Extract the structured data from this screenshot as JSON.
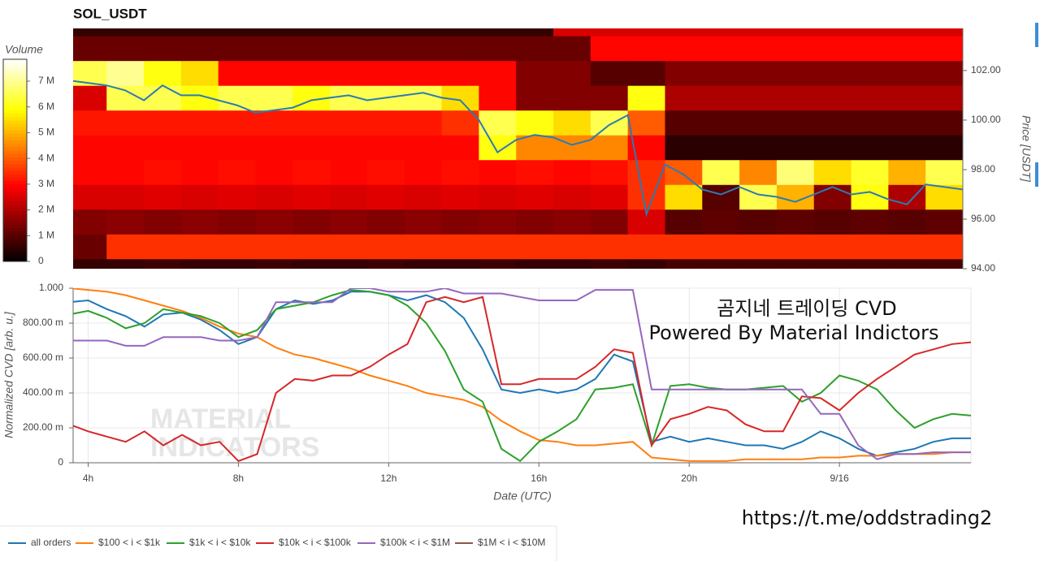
{
  "chart_data": [
    {
      "type": "heatmap",
      "title": "SOL_USDT",
      "colorbar_label": "Volume",
      "colormap": "hot",
      "ylabel": "Price [USDT]",
      "xlim": [
        3.6,
        27.5
      ],
      "ylim": [
        94,
        103.7
      ],
      "yticks": [
        {
          "value": 94,
          "label": "94.00"
        },
        {
          "value": 96,
          "label": "96.00"
        },
        {
          "value": 98,
          "label": "98.00"
        },
        {
          "value": 100,
          "label": "100.00"
        },
        {
          "value": 102,
          "label": "102.00"
        }
      ],
      "zlim": [
        0,
        7.85
      ],
      "zticks": [
        0,
        {
          "value": 1,
          "label": "1 M"
        },
        {
          "value": 2,
          "label": "2 M"
        },
        {
          "value": 3,
          "label": "3 M"
        },
        {
          "value": 4,
          "label": "4 M"
        },
        {
          "value": 5,
          "label": "5 M"
        },
        {
          "value": 6,
          "label": "6 M"
        },
        {
          "value": 7,
          "label": "7 M"
        }
      ],
      "x_bins": [
        3.5,
        4.5,
        5.5,
        6.5,
        7.5,
        8.5,
        9.5,
        10.5,
        11.5,
        12.5,
        13.5,
        14.5,
        15.5,
        16.5,
        17.5,
        18.5,
        19.5,
        20.5,
        21.5,
        22.5,
        23.5,
        24.5,
        25.5,
        26.5,
        27.5
      ],
      "y_bins": [
        93.4,
        94.4,
        95.4,
        96.4,
        97.4,
        98.4,
        99.4,
        100.4,
        101.4,
        102.4,
        103.4,
        104.4
      ],
      "z": [
        [
          0.6,
          0.6,
          0.7,
          0.6,
          0.6,
          0.7,
          0.6,
          0.6,
          0.7,
          0.6,
          0.6,
          0.7,
          0.6,
          0.6,
          0.7,
          0.6,
          0.8,
          0.8,
          0.8,
          0.8,
          0.8,
          0.8,
          0.8,
          0.8
        ],
        [
          1.2,
          3.5,
          3.5,
          3.5,
          3.5,
          3.5,
          3.5,
          3.5,
          3.5,
          3.5,
          3.5,
          3.5,
          3.5,
          3.5,
          3.5,
          3.5,
          3.5,
          3.5,
          3.5,
          3.5,
          3.5,
          3.5,
          3.5,
          3.5
        ],
        [
          1.5,
          1.6,
          1.5,
          1.6,
          1.5,
          1.6,
          1.5,
          1.6,
          1.5,
          1.6,
          1.5,
          1.6,
          1.5,
          1.6,
          1.5,
          2.5,
          1.0,
          1.1,
          1.0,
          1.1,
          1.0,
          1.1,
          1.0,
          1.1
        ],
        [
          2.5,
          2.5,
          2.6,
          2.5,
          2.6,
          2.5,
          2.6,
          2.5,
          2.6,
          2.5,
          2.6,
          2.5,
          2.6,
          2.5,
          2.6,
          3.5,
          5.5,
          1.0,
          6.5,
          5.0,
          1.5,
          6.0,
          2.0,
          5.5
        ],
        [
          3.0,
          3.0,
          3.1,
          3.0,
          3.1,
          3.0,
          3.1,
          3.0,
          3.1,
          3.0,
          3.1,
          3.0,
          3.1,
          3.0,
          3.1,
          3.5,
          4.0,
          6.5,
          4.5,
          6.8,
          5.5,
          6.2,
          5.0,
          6.5
        ],
        [
          3.0,
          3.0,
          3.0,
          3.0,
          3.0,
          3.0,
          3.0,
          3.0,
          3.0,
          3.0,
          3.0,
          6.0,
          4.5,
          4.5,
          4.5,
          3.0,
          0.5,
          0.5,
          0.5,
          0.5,
          0.5,
          0.5,
          0.5,
          0.5
        ],
        [
          3.2,
          3.2,
          3.2,
          3.2,
          3.2,
          3.2,
          3.2,
          3.2,
          3.2,
          3.2,
          3.5,
          6.5,
          6.0,
          5.5,
          6.5,
          4.0,
          1.0,
          1.0,
          1.0,
          1.0,
          1.0,
          1.0,
          1.0,
          1.0
        ],
        [
          2.5,
          6.5,
          6.5,
          6.0,
          6.5,
          6.5,
          6.0,
          6.5,
          6.5,
          6.5,
          5.5,
          3.0,
          1.5,
          1.5,
          1.5,
          6.0,
          2.0,
          2.0,
          2.0,
          2.0,
          2.0,
          2.0,
          2.0,
          2.0
        ],
        [
          6.5,
          7.0,
          6.0,
          5.5,
          3.0,
          3.0,
          3.0,
          3.0,
          3.0,
          3.0,
          3.0,
          3.0,
          1.5,
          1.5,
          1.0,
          1.0,
          1.5,
          1.5,
          1.5,
          1.5,
          1.5,
          1.5,
          1.5,
          1.5
        ],
        [
          1.2,
          1.2,
          1.2,
          1.2,
          1.2,
          1.2,
          1.2,
          1.2,
          1.2,
          1.2,
          1.2,
          1.2,
          1.2,
          1.2,
          3.0,
          3.0,
          3.0,
          3.0,
          3.0,
          3.0,
          3.0,
          3.0,
          3.0,
          3.0
        ],
        [
          0.6,
          0.6,
          0.6,
          0.6,
          0.6,
          0.6,
          0.6,
          0.6,
          0.6,
          0.6,
          0.6,
          0.6,
          0.6,
          2.5,
          2.5,
          2.5,
          2.5,
          2.5,
          2.5,
          2.5,
          2.5,
          2.5,
          2.5,
          2.5
        ]
      ],
      "line": {
        "color": "#2b7bb4",
        "x": [
          3.5,
          4,
          4.5,
          5,
          5.5,
          6,
          6.5,
          7,
          7.5,
          8,
          8.5,
          9,
          9.5,
          10,
          10.5,
          11,
          11.5,
          12,
          12.5,
          13,
          13.5,
          14,
          14.5,
          15,
          15.5,
          16,
          16.5,
          17,
          17.5,
          18,
          18.5,
          19,
          19.5,
          20,
          20.5,
          21,
          21.5,
          22,
          22.5,
          23,
          23.5,
          24,
          24.5,
          25,
          25.5,
          26,
          26.5,
          27,
          27.5
        ],
        "values": [
          101.6,
          101.5,
          101.4,
          101.2,
          100.8,
          101.4,
          101.0,
          101.0,
          100.8,
          100.6,
          100.3,
          100.4,
          100.5,
          100.8,
          100.9,
          101.0,
          100.8,
          100.9,
          101.0,
          101.1,
          100.9,
          100.8,
          100.0,
          98.7,
          99.2,
          99.4,
          99.3,
          99.0,
          99.2,
          99.8,
          100.2,
          96.2,
          98.2,
          97.8,
          97.2,
          97.0,
          97.3,
          97.0,
          96.9,
          96.7,
          97.0,
          97.3,
          97.0,
          97.1,
          96.8,
          96.6,
          97.4,
          97.3,
          97.2
        ]
      }
    },
    {
      "type": "line",
      "xlabel": "Date (UTC)",
      "ylabel": "Normalized CVD [arb. u.]",
      "grid": true,
      "xlim": [
        3.6,
        27.5
      ],
      "ylim": [
        0,
        1
      ],
      "xticks": [
        {
          "value": 4,
          "label": "4h"
        },
        {
          "value": 8,
          "label": "8h"
        },
        {
          "value": 12,
          "label": "12h"
        },
        {
          "value": 16,
          "label": "16h"
        },
        {
          "value": 20,
          "label": "20h"
        },
        {
          "value": 24,
          "label": "9/16"
        }
      ],
      "yticks": [
        0,
        {
          "value": 0.2,
          "label": "200.00 m"
        },
        {
          "value": 0.4,
          "label": "400.00 m"
        },
        {
          "value": 0.6,
          "label": "600.00 m"
        },
        {
          "value": 0.8,
          "label": "800.00 m"
        },
        {
          "value": 1,
          "label": "1.000"
        }
      ],
      "x": [
        3.5,
        4,
        4.5,
        5,
        5.5,
        6,
        6.5,
        7,
        7.5,
        8,
        8.5,
        9,
        9.5,
        10,
        10.5,
        11,
        11.5,
        12,
        12.5,
        13,
        13.5,
        14,
        14.5,
        15,
        15.5,
        16,
        16.5,
        17,
        17.5,
        18,
        18.5,
        19,
        19.5,
        20,
        20.5,
        21,
        21.5,
        22,
        22.5,
        23,
        23.5,
        24,
        24.5,
        25,
        25.5,
        26,
        26.5,
        27,
        27.5
      ],
      "series": [
        {
          "name": "all orders",
          "color": "#1f77b4",
          "values": [
            0.92,
            0.93,
            0.88,
            0.84,
            0.78,
            0.85,
            0.86,
            0.82,
            0.76,
            0.68,
            0.72,
            0.88,
            0.93,
            0.91,
            0.93,
            0.98,
            0.98,
            0.96,
            0.93,
            0.96,
            0.92,
            0.83,
            0.65,
            0.42,
            0.4,
            0.42,
            0.4,
            0.42,
            0.48,
            0.62,
            0.58,
            0.12,
            0.15,
            0.12,
            0.14,
            0.12,
            0.1,
            0.1,
            0.08,
            0.12,
            0.18,
            0.14,
            0.08,
            0.04,
            0.06,
            0.08,
            0.12,
            0.14,
            0.14
          ]
        },
        {
          "name": "$100 < i < $1k",
          "color": "#ff7f0e",
          "values": [
            1.0,
            0.99,
            0.98,
            0.96,
            0.93,
            0.9,
            0.87,
            0.83,
            0.78,
            0.74,
            0.72,
            0.66,
            0.62,
            0.6,
            0.57,
            0.54,
            0.5,
            0.47,
            0.44,
            0.4,
            0.38,
            0.36,
            0.32,
            0.24,
            0.18,
            0.13,
            0.12,
            0.1,
            0.1,
            0.11,
            0.12,
            0.03,
            0.02,
            0.01,
            0.01,
            0.01,
            0.02,
            0.02,
            0.02,
            0.02,
            0.03,
            0.03,
            0.04,
            0.04,
            0.05,
            0.05,
            0.05,
            0.06,
            0.06
          ]
        },
        {
          "name": "$1k < i < $10k",
          "color": "#2ca02c",
          "values": [
            0.85,
            0.87,
            0.83,
            0.77,
            0.8,
            0.88,
            0.86,
            0.84,
            0.8,
            0.72,
            0.76,
            0.88,
            0.9,
            0.92,
            0.96,
            0.99,
            0.98,
            0.96,
            0.9,
            0.8,
            0.64,
            0.42,
            0.35,
            0.08,
            0.01,
            0.12,
            0.18,
            0.25,
            0.42,
            0.43,
            0.45,
            0.1,
            0.44,
            0.45,
            0.43,
            0.42,
            0.42,
            0.43,
            0.44,
            0.35,
            0.4,
            0.5,
            0.47,
            0.42,
            0.3,
            0.2,
            0.25,
            0.28,
            0.27
          ]
        },
        {
          "name": "$10k < i < $100k",
          "color": "#d62728",
          "values": [
            0.22,
            0.18,
            0.15,
            0.12,
            0.18,
            0.1,
            0.16,
            0.1,
            0.12,
            0.01,
            0.05,
            0.4,
            0.48,
            0.47,
            0.5,
            0.5,
            0.55,
            0.62,
            0.68,
            0.92,
            0.95,
            0.92,
            0.95,
            0.45,
            0.45,
            0.48,
            0.48,
            0.48,
            0.55,
            0.65,
            0.63,
            0.1,
            0.25,
            0.28,
            0.32,
            0.3,
            0.22,
            0.18,
            0.18,
            0.38,
            0.37,
            0.3,
            0.4,
            0.48,
            0.55,
            0.62,
            0.65,
            0.68,
            0.69
          ]
        },
        {
          "name": "$100k < i < $1M",
          "color": "#9467bd",
          "values": [
            0.7,
            0.7,
            0.7,
            0.67,
            0.67,
            0.72,
            0.72,
            0.72,
            0.7,
            0.7,
            0.72,
            0.92,
            0.92,
            0.92,
            0.92,
            1.0,
            1.0,
            0.98,
            0.98,
            0.98,
            1.0,
            0.97,
            0.97,
            0.97,
            0.95,
            0.93,
            0.93,
            0.93,
            0.99,
            0.99,
            0.99,
            0.42,
            0.42,
            0.42,
            0.42,
            0.42,
            0.42,
            0.42,
            0.42,
            0.42,
            0.28,
            0.28,
            0.1,
            0.02,
            0.05,
            0.05,
            0.06,
            0.06,
            0.06
          ]
        },
        {
          "name": "$1M < i < $10M",
          "color": "#8c564b",
          "values": [
            null,
            null,
            null,
            null,
            null,
            null,
            null,
            null,
            null,
            null,
            null,
            null,
            null,
            null,
            null,
            null,
            null,
            null,
            null,
            null,
            null,
            null,
            null,
            null,
            null,
            null,
            null,
            null,
            null,
            null,
            null,
            null,
            null,
            null,
            null,
            null,
            null,
            null,
            null,
            null,
            null,
            null,
            null,
            null,
            null,
            null,
            null,
            null,
            null
          ]
        }
      ],
      "watermark": [
        "MATERIAL",
        "INDICATORS"
      ],
      "annotations": [
        "곰지네 트레이딩 CVD",
        "Powered By Material Indictors",
        "https://t.me/oddstrading2"
      ]
    }
  ]
}
